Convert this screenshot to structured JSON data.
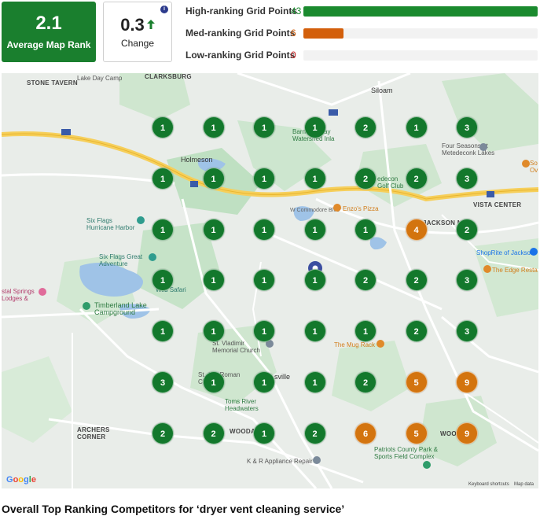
{
  "summary": {
    "average_rank_value": "2.1",
    "average_rank_label": "Average Map Rank",
    "change_value": "0.3",
    "change_label": "Change",
    "change_direction": "up",
    "info_glyph": "i"
  },
  "ranking_bars": [
    {
      "label": "High-ranking Grid Points",
      "count": "43",
      "fraction": 1.0,
      "color": "#1a8a2e"
    },
    {
      "label": "Med-ranking Grid Points",
      "count": "6",
      "fraction": 0.17,
      "color": "#d35f0b"
    },
    {
      "label": "Low-ranking Grid Points",
      "count": "0",
      "fraction": 0.0,
      "color": "#cc2222"
    }
  ],
  "colors": {
    "green": "#1a7f2e",
    "orange": "#d27514",
    "marker_green": "#13782c",
    "marker_orange": "#d3740f"
  },
  "map": {
    "labels": {
      "stone_tavern": "STONE TAVERN",
      "lake_day_camp": "Lake Day Camp",
      "clarksburg": "CLARKSBURG",
      "siloam": "Siloam",
      "holmeson": "Holmeson",
      "barnegat": "Barnegat Bay\nWatershed Inla",
      "rlede_golf": "edecon\nGolf Club",
      "four_seasons": "Four Seasons at\nMetedeconk Lakes",
      "vista_center": "VISTA CENTER",
      "six_flags_hurricane": "Six Flags\nHurricane Harbor",
      "enzo": "Enzo's Pizza",
      "jackson_mills": "JACKSON MILL",
      "shoprite": "ShopRite of Jackson",
      "edge_resta": "The Edge Resta",
      "six_flags_great": "Six Flags Great\nAdventure",
      "wild_safari": "Wild Safari",
      "crystal_springs": "stal Springs\nLodges &",
      "timberland": "Timberland Lake\nCampground",
      "st_vladimir": "St. Vladimir\nMemorial Church",
      "mug_rack": "The Mug Rack",
      "st_roman": "St. Al... Roman\nChurch",
      "cassville": "sville",
      "toms_river": "Toms River\nHeadwaters",
      "archers_corner": "ARCHERS\nCORNER",
      "wooda1": "WOODA",
      "wooda2": "WOOD",
      "kr_appliance": "K & R Appliance Repair",
      "patriots": "Patriots County Park &\nSports Field Complex",
      "w_commodore": "W Commodore Blvd",
      "keyboard": "Keyboard shortcuts",
      "map_data": "Map data",
      "so_ov": "So\nOv",
      "google": "Google"
    },
    "grid": [
      [
        "1",
        "1",
        "1",
        "1",
        "2",
        "1",
        "3"
      ],
      [
        "1",
        "1",
        "1",
        "1",
        "2",
        "2",
        "3"
      ],
      [
        "1",
        "1",
        "1",
        "1",
        "1",
        "4",
        "2"
      ],
      [
        "1",
        "1",
        "1",
        "1",
        "2",
        "2",
        "3"
      ],
      [
        "1",
        "1",
        "1",
        "1",
        "1",
        "2",
        "3"
      ],
      [
        "3",
        "1",
        "1",
        "1",
        "2",
        "5",
        "9"
      ],
      [
        "2",
        "2",
        "1",
        "2",
        "6",
        "5",
        "9"
      ]
    ]
  },
  "competitors_heading": "Overall Top Ranking Competitors for ‘dryer vent cleaning service’"
}
